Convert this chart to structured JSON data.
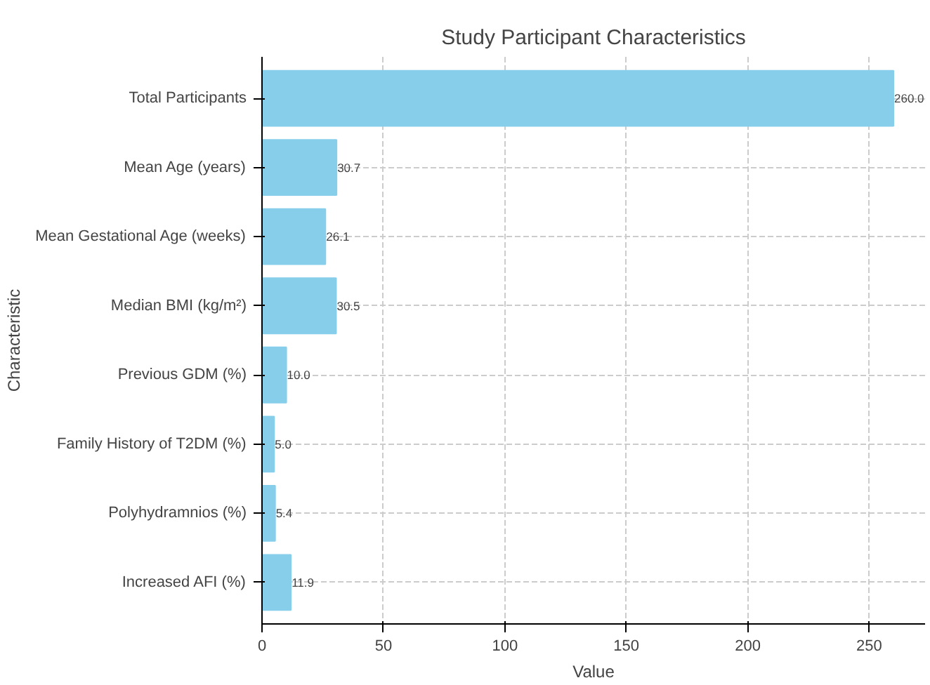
{
  "chart_data": {
    "type": "bar",
    "orientation": "horizontal",
    "title": "Study Participant Characteristics",
    "xlabel": "Value",
    "ylabel": "Characteristic",
    "categories": [
      "Total Participants",
      "Mean Age (years)",
      "Mean Gestational Age (weeks)",
      "Median BMI (kg/m²)",
      "Previous GDM (%)",
      "Family History of T2DM (%)",
      "Polyhydramnios (%)",
      "Increased AFI (%)"
    ],
    "values": [
      260.0,
      30.7,
      26.1,
      30.5,
      10.0,
      5.0,
      5.4,
      11.9
    ],
    "value_labels": [
      "260.0",
      "30.7",
      "26.1",
      "30.5",
      "10.0",
      "5.0",
      "5.4",
      "11.9"
    ],
    "color": "#87ceeb",
    "xlim": [
      0,
      273
    ],
    "xticks": [
      0,
      50,
      100,
      150,
      200,
      250
    ],
    "grid": true
  }
}
